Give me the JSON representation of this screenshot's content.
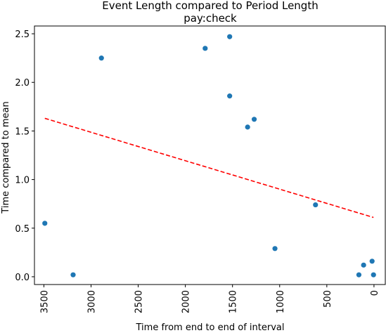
{
  "chart_data": {
    "type": "scatter",
    "title": "Event Length compared to Period Length",
    "subtitle": "pay:check",
    "xlabel": "Time from end to end of interval",
    "ylabel": "Time compared to mean",
    "xlim": [
      3600,
      -120
    ],
    "ylim": [
      -0.08,
      2.58
    ],
    "x_inverted": true,
    "x_ticks": [
      3500,
      3000,
      2500,
      2000,
      1500,
      1000,
      500,
      0
    ],
    "y_ticks": [
      0.0,
      0.5,
      1.0,
      1.5,
      2.0,
      2.5
    ],
    "x_tick_labels": [
      "3500",
      "3000",
      "2500",
      "2000",
      "1500",
      "1000",
      "500",
      "0"
    ],
    "y_tick_labels": [
      "0.0",
      "0.5",
      "1.0",
      "1.5",
      "2.0",
      "2.5"
    ],
    "x_tick_rotation": "vertical",
    "grid": false,
    "series": [
      {
        "type": "scatter",
        "color": "#1f77b4",
        "points": [
          {
            "x": 3490,
            "y": 0.55
          },
          {
            "x": 3190,
            "y": 0.02
          },
          {
            "x": 2890,
            "y": 2.25
          },
          {
            "x": 1790,
            "y": 2.35
          },
          {
            "x": 1530,
            "y": 2.47
          },
          {
            "x": 1530,
            "y": 1.86
          },
          {
            "x": 1340,
            "y": 1.54
          },
          {
            "x": 1270,
            "y": 1.62
          },
          {
            "x": 1050,
            "y": 0.29
          },
          {
            "x": 620,
            "y": 0.74
          },
          {
            "x": 160,
            "y": 0.02
          },
          {
            "x": 110,
            "y": 0.12
          },
          {
            "x": 20,
            "y": 0.16
          },
          {
            "x": 5,
            "y": 0.02
          }
        ]
      },
      {
        "type": "line",
        "style": "dashed",
        "color": "#ff0000",
        "points": [
          {
            "x": 3490,
            "y": 1.63
          },
          {
            "x": 5,
            "y": 0.61
          }
        ]
      }
    ]
  }
}
